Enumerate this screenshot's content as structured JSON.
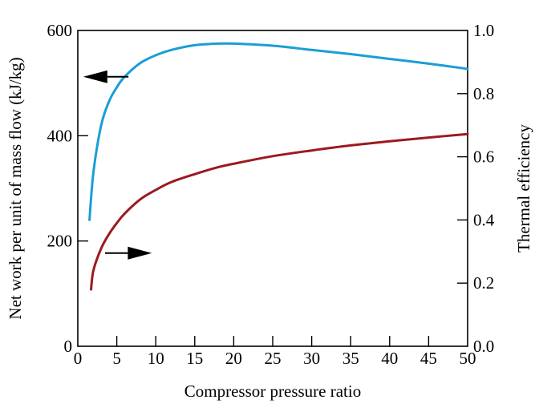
{
  "chart_data": {
    "type": "line",
    "title": "",
    "xlabel": "Compressor pressure ratio",
    "ylabel": "Net work per unit of mass flow (kJ/kg)",
    "y2label": "Thermal efficiency",
    "xlim": [
      0,
      50
    ],
    "ylim": [
      0,
      600
    ],
    "y2lim": [
      0.0,
      1.0
    ],
    "x_ticks": [
      0,
      5,
      10,
      15,
      20,
      25,
      30,
      35,
      40,
      45,
      50
    ],
    "x_tick_labels": [
      "0",
      "5",
      "10",
      "15",
      "20",
      "25",
      "30",
      "35",
      "40",
      "45",
      "50"
    ],
    "y_ticks": [
      0,
      200,
      400,
      600
    ],
    "y_tick_labels": [
      "0",
      "200",
      "400",
      "600"
    ],
    "y2_ticks": [
      0.0,
      0.2,
      0.4,
      0.6,
      0.8,
      1.0
    ],
    "y2_tick_labels": [
      "0.0",
      "0.2",
      "0.4",
      "0.6",
      "0.8",
      "1.0"
    ],
    "grid": false,
    "legend": "none",
    "series": [
      {
        "axis": "left",
        "color": "#1a9ed6",
        "x": [
          1.5,
          2,
          3,
          4,
          5,
          6,
          8,
          10,
          12,
          15,
          18,
          20,
          25,
          30,
          35,
          40,
          45,
          50
        ],
        "values": [
          240,
          330,
          420,
          465,
          492,
          512,
          538,
          553,
          563,
          572,
          575,
          575,
          571,
          563,
          555,
          546,
          537,
          527
        ]
      },
      {
        "axis": "right",
        "color": "#9b1a1f",
        "x": [
          1.7,
          2,
          3,
          4,
          5,
          6,
          8,
          10,
          12,
          15,
          18,
          20,
          25,
          30,
          35,
          40,
          45,
          50
        ],
        "values": [
          0.18,
          0.24,
          0.31,
          0.355,
          0.39,
          0.42,
          0.465,
          0.495,
          0.52,
          0.545,
          0.567,
          0.578,
          0.602,
          0.62,
          0.636,
          0.649,
          0.661,
          0.672
        ]
      }
    ],
    "annotations": [
      {
        "type": "arrow",
        "direction": "left",
        "axis": "left",
        "from": [
          6.5,
          512
        ],
        "to": [
          0.7,
          512
        ]
      },
      {
        "type": "arrow",
        "direction": "right",
        "axis": "right",
        "from": [
          3.5,
          0.295
        ],
        "to": [
          9.5,
          0.295
        ]
      }
    ]
  }
}
